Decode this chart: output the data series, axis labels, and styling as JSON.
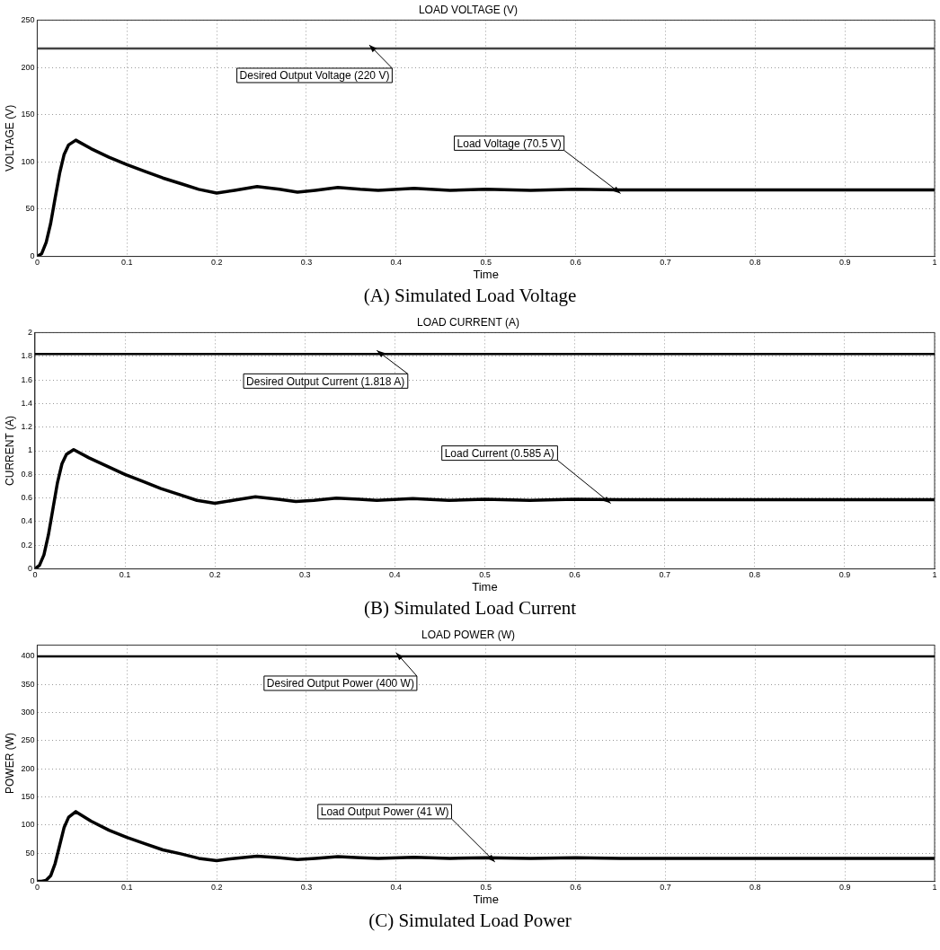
{
  "chart_data": [
    {
      "type": "line",
      "title": "LOAD VOLTAGE (V)",
      "xlabel": "Time",
      "ylabel": "VOLTAGE (V)",
      "grid": true,
      "xlim": [
        0,
        1
      ],
      "xticks": [
        0,
        0.1,
        0.2,
        0.3,
        0.4,
        0.5,
        0.6,
        0.7,
        0.8,
        0.9,
        1
      ],
      "ylim": [
        0,
        250
      ],
      "yticks": [
        0,
        50,
        100,
        150,
        200,
        250
      ],
      "x": [
        0,
        0.005,
        0.01,
        0.015,
        0.02,
        0.025,
        0.03,
        0.035,
        0.043,
        0.06,
        0.08,
        0.1,
        0.12,
        0.14,
        0.16,
        0.18,
        0.2,
        0.22,
        0.245,
        0.27,
        0.29,
        0.31,
        0.335,
        0.36,
        0.38,
        0.42,
        0.46,
        0.5,
        0.55,
        0.6,
        0.65,
        0.7,
        1
      ],
      "series": [
        {
          "color": "#000000",
          "values": [
            0,
            3,
            15,
            35,
            62,
            88,
            108,
            118,
            123,
            114,
            105,
            97,
            90,
            83,
            77,
            71,
            67,
            70,
            74,
            71,
            68,
            70,
            73,
            71,
            70,
            72,
            70,
            71,
            70,
            71,
            70.5,
            70.5,
            70.5
          ]
        }
      ],
      "ref_lines": [
        {
          "axis": "y",
          "value": 220,
          "color": "#444444"
        }
      ],
      "annotations": [
        {
          "text": "Desired Output Voltage (220 V)",
          "x": 0.37,
          "y": 220
        },
        {
          "text": "Load Voltage (70.5 V)",
          "x": 0.65,
          "y": 70.5
        },
        "(A) Simulated Load Voltage"
      ]
    },
    {
      "type": "line",
      "title": "LOAD CURRENT (A)",
      "xlabel": "Time",
      "ylabel": "CURRENT (A)",
      "grid": true,
      "xlim": [
        0,
        1
      ],
      "xticks": [
        0,
        0.1,
        0.2,
        0.3,
        0.4,
        0.5,
        0.6,
        0.7,
        0.8,
        0.9,
        1
      ],
      "ylim": [
        0,
        2
      ],
      "yticks": [
        0,
        0.2,
        0.4,
        0.6,
        0.8,
        1,
        1.2,
        1.4,
        1.6,
        1.8,
        2
      ],
      "x": [
        0,
        0.005,
        0.01,
        0.015,
        0.02,
        0.025,
        0.03,
        0.035,
        0.043,
        0.06,
        0.08,
        0.1,
        0.12,
        0.14,
        0.16,
        0.18,
        0.2,
        0.22,
        0.245,
        0.27,
        0.29,
        0.31,
        0.335,
        0.36,
        0.38,
        0.42,
        0.46,
        0.5,
        0.55,
        0.6,
        0.65,
        0.7,
        1
      ],
      "series": [
        {
          "color": "#000000",
          "values": [
            0,
            0.03,
            0.12,
            0.29,
            0.51,
            0.73,
            0.89,
            0.97,
            1.01,
            0.94,
            0.87,
            0.8,
            0.74,
            0.68,
            0.63,
            0.58,
            0.555,
            0.58,
            0.61,
            0.59,
            0.57,
            0.58,
            0.6,
            0.59,
            0.58,
            0.595,
            0.58,
            0.59,
            0.58,
            0.59,
            0.585,
            0.585,
            0.585
          ]
        }
      ],
      "ref_lines": [
        {
          "axis": "y",
          "value": 1.818,
          "color": "#000000"
        }
      ],
      "annotations": [
        {
          "text": "Desired Output Current (1.818 A)",
          "x": 0.38,
          "y": 1.818
        },
        {
          "text": "Load Current (0.585 A)",
          "x": 0.64,
          "y": 0.585
        },
        "(B) Simulated Load Current"
      ]
    },
    {
      "type": "line",
      "title": "LOAD POWER (W)",
      "xlabel": "Time",
      "ylabel": "POWER (W)",
      "grid": true,
      "xlim": [
        0,
        1
      ],
      "xticks": [
        0,
        0.1,
        0.2,
        0.3,
        0.4,
        0.5,
        0.6,
        0.7,
        0.8,
        0.9,
        1
      ],
      "ylim": [
        0,
        420
      ],
      "yticks": [
        0,
        50,
        100,
        150,
        200,
        250,
        300,
        350,
        400
      ],
      "x": [
        0,
        0.005,
        0.01,
        0.015,
        0.02,
        0.025,
        0.03,
        0.035,
        0.043,
        0.06,
        0.08,
        0.1,
        0.12,
        0.14,
        0.16,
        0.18,
        0.2,
        0.22,
        0.245,
        0.27,
        0.29,
        0.31,
        0.335,
        0.36,
        0.38,
        0.42,
        0.46,
        0.5,
        0.55,
        0.6,
        0.65,
        0.7,
        1
      ],
      "series": [
        {
          "color": "#000000",
          "values": [
            0,
            0.1,
            2,
            10,
            32,
            64,
            96,
            114,
            124,
            107,
            91,
            78,
            67,
            56,
            49,
            41,
            37,
            41,
            45,
            42,
            39,
            41,
            44,
            42,
            41,
            43,
            41,
            42,
            41,
            42,
            41,
            41,
            41
          ]
        }
      ],
      "ref_lines": [
        {
          "axis": "y",
          "value": 400,
          "color": "#000000"
        }
      ],
      "annotations": [
        {
          "text": "Desired Output Power (400 W)",
          "x": 0.4,
          "y": 400
        },
        {
          "text": "Load Output Power (41 W)",
          "x": 0.51,
          "y": 41
        },
        "(C) Simulated Load Power"
      ]
    }
  ]
}
